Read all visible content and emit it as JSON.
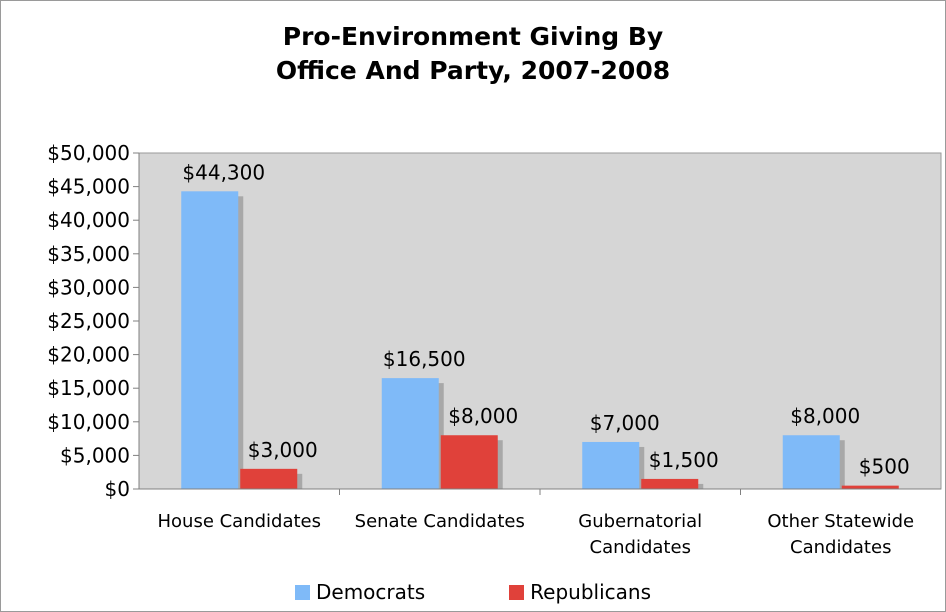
{
  "chart_data": {
    "type": "bar",
    "title_lines": [
      "Pro-Environment Giving By",
      "Office And Party, 2007-2008"
    ],
    "categories": [
      [
        "House Candidates"
      ],
      [
        "Senate Candidates"
      ],
      [
        "Gubernatorial",
        "Candidates"
      ],
      [
        "Other Statewide",
        "Candidates"
      ]
    ],
    "series": [
      {
        "name": "Democrats",
        "color": "#7fbaf8",
        "values": [
          44300,
          16500,
          7000,
          8000
        ],
        "labels": [
          "$44,300",
          "$16,500",
          "$7,000",
          "$8,000"
        ]
      },
      {
        "name": "Republicans",
        "color": "#e0413a",
        "values": [
          3000,
          8000,
          1500,
          500
        ],
        "labels": [
          "$3,000",
          "$8,000",
          "$1,500",
          "$500"
        ]
      }
    ],
    "ylim": [
      0,
      50000
    ],
    "yticks": [
      "$0",
      "$5,000",
      "$10,000",
      "$15,000",
      "$20,000",
      "$25,000",
      "$30,000",
      "$35,000",
      "$40,000",
      "$45,000",
      "$50,000"
    ],
    "ytick_values": [
      0,
      5000,
      10000,
      15000,
      20000,
      25000,
      30000,
      35000,
      40000,
      45000,
      50000
    ],
    "grid": false,
    "legend_position": "bottom",
    "plot_background": "#d6d6d6"
  }
}
